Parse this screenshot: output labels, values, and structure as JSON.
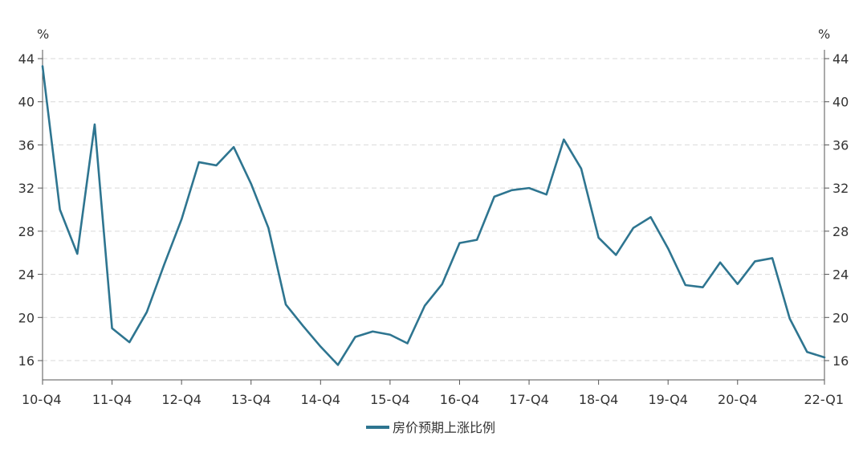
{
  "chart_data": {
    "type": "line",
    "title": "",
    "xlabel": "",
    "ylabel_left_unit": "%",
    "ylabel_right_unit": "%",
    "ylim": [
      14,
      44
    ],
    "yticks": [
      16,
      20,
      24,
      28,
      32,
      36,
      40,
      44
    ],
    "grid": true,
    "legend_position": "bottom-center",
    "x_tick_labels": [
      "10-Q4",
      "11-Q4",
      "12-Q4",
      "13-Q4",
      "14-Q4",
      "15-Q4",
      "16-Q4",
      "17-Q4",
      "18-Q4",
      "19-Q4",
      "20-Q4",
      "22-Q1"
    ],
    "x_tick_positions": [
      0,
      4,
      8,
      12,
      16,
      20,
      24,
      28,
      32,
      36,
      40,
      45
    ],
    "x_range": [
      0,
      45
    ],
    "series": [
      {
        "name": "房价预期上涨比例",
        "color": "#2e7590",
        "x": [
          0,
          1,
          2,
          3,
          4,
          5,
          6,
          7,
          8,
          9,
          10,
          11,
          12,
          13,
          14,
          15,
          16,
          17,
          18,
          19,
          20,
          21,
          22,
          23,
          24,
          25,
          26,
          27,
          28,
          29,
          30,
          31,
          32,
          33,
          34,
          35,
          36,
          37,
          38,
          39,
          40,
          41,
          42,
          43,
          44,
          45
        ],
        "values": [
          43.3,
          30.0,
          25.9,
          37.9,
          19.0,
          17.7,
          20.5,
          24.9,
          29.1,
          34.4,
          34.1,
          35.8,
          32.4,
          28.3,
          21.2,
          19.2,
          17.3,
          15.6,
          18.2,
          18.7,
          18.4,
          17.6,
          21.1,
          23.1,
          26.9,
          27.2,
          31.2,
          31.8,
          32.0,
          31.4,
          36.5,
          33.8,
          27.4,
          25.8,
          28.3,
          29.3,
          26.4,
          23.0,
          22.8,
          25.1,
          23.1,
          25.2,
          25.5,
          19.9,
          16.8,
          16.3
        ]
      }
    ]
  }
}
